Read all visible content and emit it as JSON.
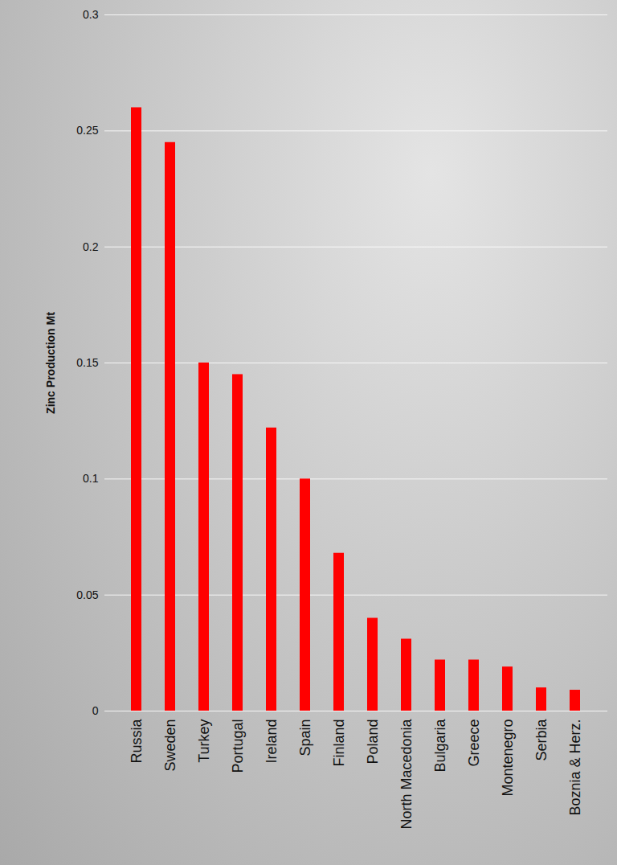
{
  "chart_data": {
    "type": "bar",
    "y_label": "Zinc Production Mt",
    "categories": [
      "Russia",
      "Sweden",
      "Turkey",
      "Portugal",
      "Ireland",
      "Spain",
      "Finland",
      "Poland",
      "North Macedonia",
      "Bulgaria",
      "Greece",
      "Montenegro",
      "Serbia",
      "Boznia & Herz."
    ],
    "values": [
      0.26,
      0.245,
      0.15,
      0.145,
      0.122,
      0.1,
      0.068,
      0.04,
      0.031,
      0.022,
      0.022,
      0.019,
      0.01,
      0.009
    ],
    "color": "#ff0000",
    "ylim": [
      0,
      0.3
    ],
    "yticks": [
      0,
      0.05,
      0.1,
      0.15,
      0.2,
      0.25,
      0.3
    ],
    "grid": true
  }
}
